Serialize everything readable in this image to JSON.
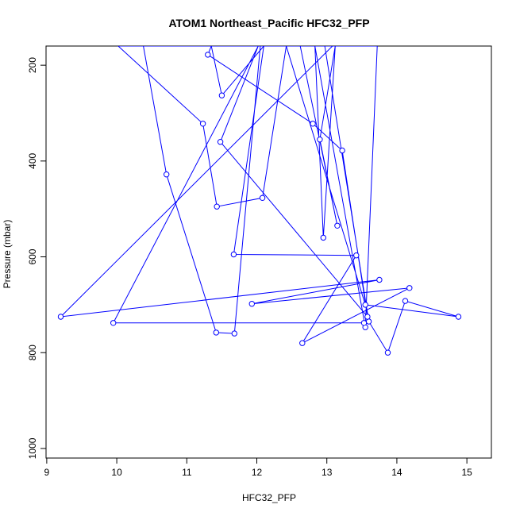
{
  "chart_data": {
    "type": "line",
    "title": "ATOM1 Northeast_Pacific HFC32_PFP",
    "xlabel": "HFC32_PFP",
    "ylabel": "Pressure (mbar)",
    "xlim": [
      8.99,
      15.35
    ],
    "ylim": [
      1020,
      160
    ],
    "y_reversed": true,
    "x_ticks": [
      9,
      10,
      11,
      12,
      13,
      14,
      15
    ],
    "y_ticks": [
      200,
      400,
      600,
      800,
      1000
    ],
    "grid": false,
    "legend": "none",
    "series_color": "#0000ff",
    "marker": "open-circle",
    "series": [
      {
        "x": [
          10.38,
          10.71,
          11.42,
          11.68,
          12.05,
          12.62,
          13.15,
          12.9,
          13.12,
          12.95,
          12.83,
          13.55,
          13.72,
          10.02,
          11.23,
          11.43,
          12.08,
          12.42,
          13.55,
          14.88,
          14.12,
          13.87,
          13.6,
          12.97,
          13.08,
          9.2,
          13.75,
          11.93,
          14.18,
          12.65,
          13.42,
          11.67,
          12.1,
          11.5,
          11.35,
          11.3,
          12.8,
          13.22,
          13.58,
          11.48,
          12.02,
          9.95,
          13.53
        ],
        "y": [
          160,
          428,
          758,
          760,
          160,
          160,
          535,
          355,
          160,
          560,
          160,
          747,
          160,
          160,
          322,
          495,
          477,
          160,
          700,
          725,
          692,
          800,
          735,
          160,
          160,
          725,
          648,
          698,
          665,
          780,
          597,
          595,
          160,
          263,
          160,
          178,
          322,
          378,
          725,
          360,
          160,
          738,
          738
        ]
      }
    ]
  }
}
